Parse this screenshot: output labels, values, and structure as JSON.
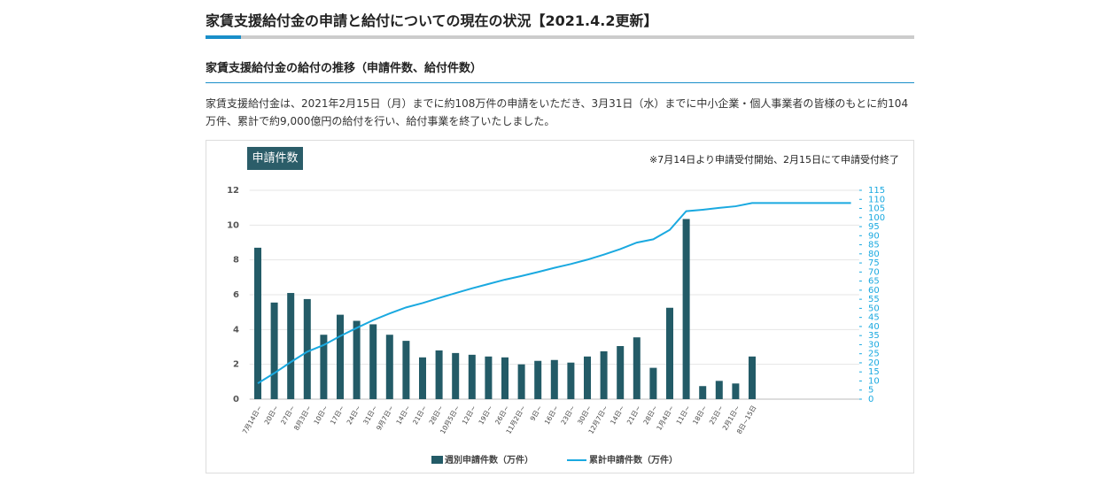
{
  "header": {
    "title": "家賃支援給付金の申請と給付についての現在の状況【2021.4.2更新】",
    "subtitle": "家賃支援給付金の給付の推移（申請件数、給付件数）",
    "paragraph": "家賃支援給付金は、2021年2月15日（月）までに約108万件の申請をいただき、3月31日（水）までに中小企業・個人事業者の皆様のもとに約104万件、累計で約9,000億円の給付を行い、給付事業を終了いたしました。"
  },
  "chart_data": {
    "type": "bar_line",
    "ylabel": "申請件数",
    "annotation": "※7月14日より申請受付開始、2月15日にて申請受付終了",
    "categories": [
      "7月14日~",
      "20日~",
      "27日~",
      "8月3日~",
      "10日~",
      "17日~",
      "24日~",
      "31日~",
      "9月7日~",
      "14日~",
      "21日~",
      "28日~",
      "10月5日~",
      "12日~",
      "19日~",
      "26日~",
      "11月2日~",
      "9日~",
      "16日~",
      "23日~",
      "30日~",
      "12月7日~",
      "14日~",
      "21日~",
      "28日~",
      "1月4日~",
      "11日~",
      "18日~",
      "25日~",
      "2月1日~",
      "8日~15日",
      null,
      null,
      null,
      null,
      null,
      null
    ],
    "series": [
      {
        "name": "週別申請件数（万件）",
        "type": "bar",
        "color": "#235b67",
        "values": [
          8.7,
          5.55,
          6.1,
          5.75,
          3.7,
          4.85,
          4.5,
          4.3,
          3.7,
          3.35,
          2.4,
          2.8,
          2.65,
          2.55,
          2.45,
          2.4,
          2.0,
          2.2,
          2.25,
          2.1,
          2.45,
          2.75,
          3.05,
          3.55,
          1.8,
          5.25,
          10.35,
          0.75,
          1.05,
          0.9,
          2.45,
          null,
          null,
          null,
          null,
          null,
          null
        ]
      },
      {
        "name": "累計申請件数（万件）",
        "type": "line",
        "axis": "y2",
        "color": "#1aa9e0",
        "values": [
          8.7,
          14.3,
          20.4,
          26.1,
          29.8,
          34.7,
          39.2,
          43.5,
          47.2,
          50.5,
          52.9,
          55.7,
          58.4,
          61,
          63.4,
          65.8,
          67.8,
          70,
          72.3,
          74.4,
          76.8,
          79.6,
          82.6,
          86.2,
          88,
          93.2,
          103.5,
          104.3,
          105.3,
          106.2,
          108,
          108,
          108,
          108,
          108,
          108,
          108
        ]
      }
    ],
    "ylim": [
      0,
      12
    ],
    "yticks": [
      0,
      2,
      4,
      6,
      8,
      10,
      12
    ],
    "y2lim": [
      0,
      115
    ],
    "y2ticks": [
      0,
      5,
      10,
      15,
      20,
      25,
      30,
      35,
      40,
      45,
      50,
      55,
      60,
      65,
      70,
      75,
      80,
      85,
      90,
      95,
      100,
      105,
      110,
      115
    ],
    "grid": true
  }
}
